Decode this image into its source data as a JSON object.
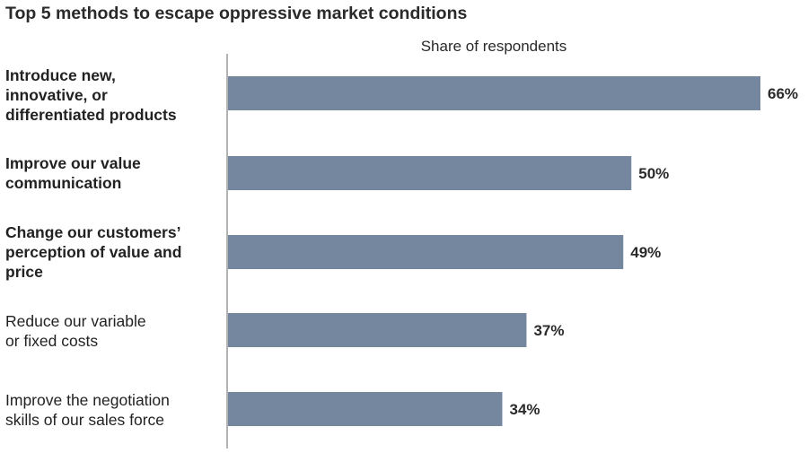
{
  "chart_data": {
    "type": "bar",
    "orientation": "horizontal",
    "title": "Top 5 methods to escape oppressive market conditions",
    "xlabel": "Share of respondents",
    "ylabel": "",
    "categories": [
      "Introduce new,\ninnovative, or\ndifferentiated products",
      "Improve our value\ncommunication",
      "Change our customers’\nperception of value and\nprice",
      "Reduce our variable\nor fixed costs",
      "Improve the negotiation\nskills of our sales force"
    ],
    "values": [
      66,
      50,
      49,
      37,
      34
    ],
    "value_labels": [
      "66%",
      "50%",
      "49%",
      "37%",
      "34%"
    ],
    "bold_categories": [
      true,
      true,
      true,
      false,
      false
    ],
    "xlim": [
      0,
      66
    ],
    "grid": false,
    "bar_color": "#74879f",
    "axis_color": "#9a9a9a"
  }
}
